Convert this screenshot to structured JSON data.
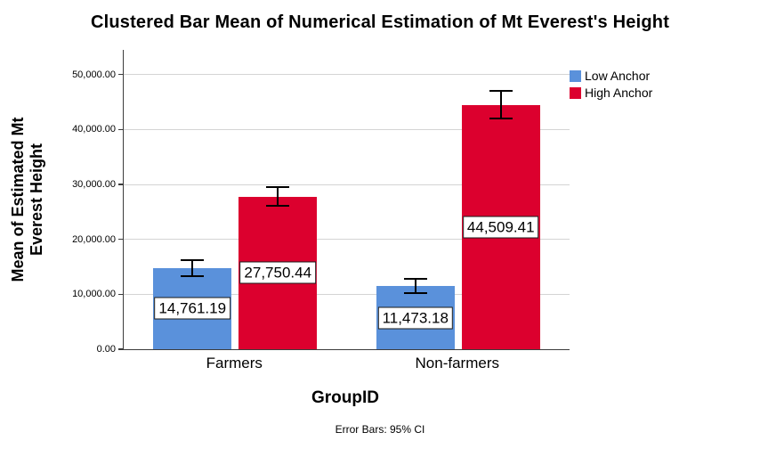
{
  "chart_data": {
    "type": "bar",
    "style": "clustered",
    "title": "Clustered Bar Mean of Numerical Estimation of Mt Everest's Height",
    "xlabel": "GroupID",
    "ylabel": "Mean of Estimated Mt Everest Height",
    "ylabel_lines": [
      "Mean of Estimated Mt",
      "Everest Height"
    ],
    "footnote": "Error Bars: 95% CI",
    "categories": [
      "Farmers",
      "Non-farmers"
    ],
    "series": [
      {
        "name": "Low Anchor",
        "color": "#5A91DB",
        "values": [
          14761.19,
          11473.18
        ],
        "value_labels": [
          "14,761.19",
          "11,473.18"
        ],
        "ci_low": [
          13100,
          10000
        ],
        "ci_high": [
          16450,
          12950
        ]
      },
      {
        "name": "High Anchor",
        "color": "#DC002E",
        "values": [
          27750.44,
          44509.41
        ],
        "value_labels": [
          "27,750.44",
          "44,509.41"
        ],
        "ci_low": [
          26000,
          41800
        ],
        "ci_high": [
          29700,
          47250
        ]
      }
    ],
    "yticks": [
      0,
      10000,
      20000,
      30000,
      40000,
      50000
    ],
    "ytick_labels": [
      "0.00",
      "10,000.00",
      "20,000.00",
      "30,000.00",
      "40,000.00",
      "50,000.00"
    ],
    "ylim": [
      0,
      54500
    ],
    "grid": true,
    "legend_position": "top-right",
    "error_bar_type": "95% CI"
  }
}
